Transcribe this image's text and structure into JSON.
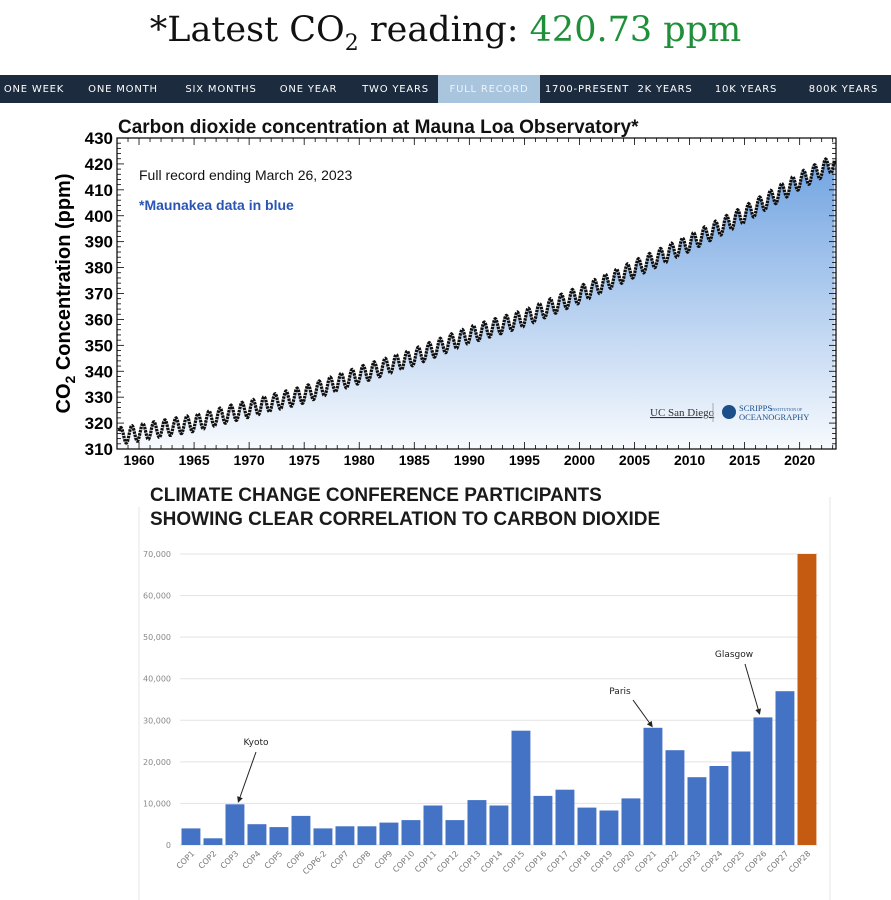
{
  "headline": {
    "prefix": "*Latest CO",
    "sub": "2",
    "middle": " reading: ",
    "value": "420.73 ppm",
    "value_color": "#1f8f3a"
  },
  "nav": {
    "tabs": [
      {
        "label": "ONE WEEK",
        "active": false
      },
      {
        "label": "ONE MONTH",
        "active": false
      },
      {
        "label": "SIX MONTHS",
        "active": false
      },
      {
        "label": "ONE YEAR",
        "active": false
      },
      {
        "label": "TWO YEARS",
        "active": false
      },
      {
        "label": "FULL RECORD",
        "active": true
      },
      {
        "label": "1700-PRESENT",
        "active": false
      },
      {
        "label": "2K YEARS",
        "active": false
      },
      {
        "label": "10K YEARS",
        "active": false
      },
      {
        "label": "800K YEARS",
        "active": false
      }
    ]
  },
  "chart_data": [
    {
      "type": "line",
      "title": "Carbon dioxide concentration at Mauna Loa Observatory*",
      "annotation": "Full record ending March 26, 2023",
      "note": "*Maunakea data in blue",
      "note_color": "#2a55b5",
      "ylabel_prefix": "CO",
      "ylabel_sub": "2",
      "ylabel_suffix": " Concentration (ppm)",
      "xlim": [
        1958,
        2023.3
      ],
      "ylim": [
        310,
        430
      ],
      "xticks": [
        1960,
        1965,
        1970,
        1975,
        1980,
        1985,
        1990,
        1995,
        2000,
        2005,
        2010,
        2015,
        2020
      ],
      "yticks": [
        310,
        320,
        330,
        340,
        350,
        360,
        370,
        380,
        390,
        400,
        410,
        420,
        430
      ],
      "trend": [
        {
          "year": 1958.2,
          "ppm": 315.0
        },
        {
          "year": 1965,
          "ppm": 320.0
        },
        {
          "year": 1970,
          "ppm": 325.5
        },
        {
          "year": 1975,
          "ppm": 331.0
        },
        {
          "year": 1980,
          "ppm": 338.5
        },
        {
          "year": 1985,
          "ppm": 345.5
        },
        {
          "year": 1990,
          "ppm": 354.0
        },
        {
          "year": 1995,
          "ppm": 360.5
        },
        {
          "year": 2000,
          "ppm": 369.5
        },
        {
          "year": 2005,
          "ppm": 379.5
        },
        {
          "year": 2010,
          "ppm": 389.5
        },
        {
          "year": 2015,
          "ppm": 400.5
        },
        {
          "year": 2020,
          "ppm": 413.5
        },
        {
          "year": 2023.2,
          "ppm": 420.5
        }
      ],
      "seasonal_amplitude_ppm": 3.2,
      "line_color": "#111111",
      "fill_color": "#6a9fe0",
      "logos": [
        "UC San Diego",
        "SCRIPPS",
        "INSTITUTION OF",
        "OCEANOGRAPHY"
      ]
    },
    {
      "type": "bar",
      "title_lines": [
        "CLIMATE CHANGE CONFERENCE PARTICIPANTS",
        "SHOWING CLEAR CORRELATION TO CARBON DIOXIDE"
      ],
      "categories": [
        "COP1",
        "COP2",
        "COP3",
        "COP4",
        "COP5",
        "COP6",
        "COP6-2",
        "COP7",
        "COP8",
        "COP9",
        "COP10",
        "COP11",
        "COP12",
        "COP13",
        "COP14",
        "COP15",
        "COP16",
        "COP17",
        "COP18",
        "COP19",
        "COP20",
        "COP21",
        "COP22",
        "COP23",
        "COP24",
        "COP25",
        "COP26",
        "COP27",
        "COP28"
      ],
      "values": [
        4000,
        1600,
        9800,
        5000,
        4300,
        7000,
        4000,
        4500,
        4500,
        5400,
        6000,
        9500,
        6000,
        10800,
        9500,
        27500,
        11800,
        13300,
        9000,
        8300,
        11200,
        28200,
        22800,
        16300,
        19000,
        22500,
        30700,
        37000,
        70000
      ],
      "bar_color": "#4472c4",
      "highlight_index": 28,
      "highlight_color": "#c55a11",
      "ylim": [
        0,
        70000
      ],
      "yticks": [
        "0",
        "10,000",
        "20,000",
        "30,000",
        "40,000",
        "50,000",
        "60,000",
        "70,000"
      ],
      "ytick_values": [
        0,
        10000,
        20000,
        30000,
        40000,
        50000,
        60000,
        70000
      ],
      "annotations": [
        {
          "text": "Kyoto",
          "target_index": 2
        },
        {
          "text": "Paris",
          "target_index": 21
        },
        {
          "text": "Glasgow",
          "target_index": 26
        }
      ]
    }
  ]
}
